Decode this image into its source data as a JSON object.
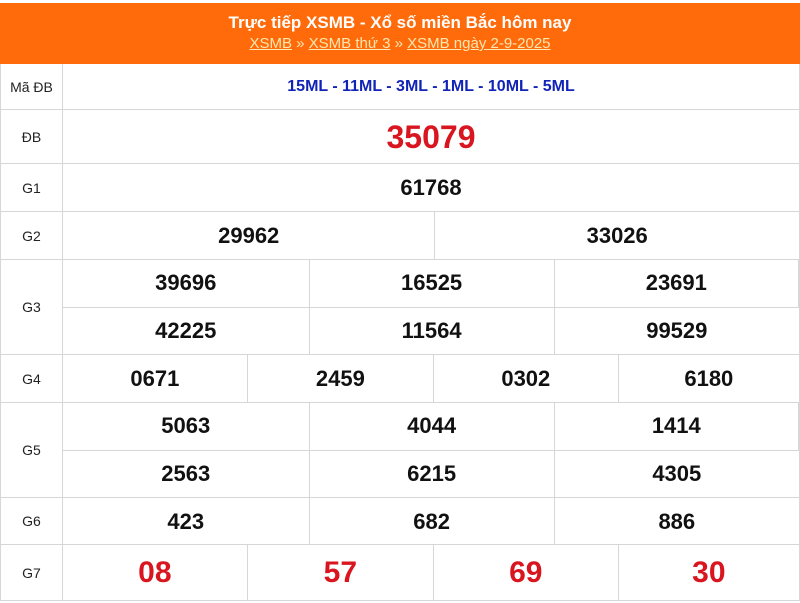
{
  "header": {
    "title": "Trực tiếp XSMB - Xổ số miền Bắc hôm nay",
    "breadcrumb": [
      "XSMB",
      "XSMB thứ 3",
      "XSMB ngày 2-9-2025"
    ],
    "sep": "»"
  },
  "colors": {
    "header_bg": "#ff6b0a",
    "special": "#d9151f",
    "code": "#1224b8"
  },
  "rows": {
    "ma_db": {
      "label": "Mã ĐB",
      "value": "15ML - 11ML - 3ML - 1ML - 10ML - 5ML"
    },
    "db": {
      "label": "ĐB",
      "values": [
        "35079"
      ]
    },
    "g1": {
      "label": "G1",
      "values": [
        "61768"
      ]
    },
    "g2": {
      "label": "G2",
      "values": [
        "29962",
        "33026"
      ]
    },
    "g3": {
      "label": "G3",
      "values": [
        "39696",
        "16525",
        "23691",
        "42225",
        "11564",
        "99529"
      ]
    },
    "g4": {
      "label": "G4",
      "values": [
        "0671",
        "2459",
        "0302",
        "6180"
      ]
    },
    "g5": {
      "label": "G5",
      "values": [
        "5063",
        "4044",
        "1414",
        "2563",
        "6215",
        "4305"
      ]
    },
    "g6": {
      "label": "G6",
      "values": [
        "423",
        "682",
        "886"
      ]
    },
    "g7": {
      "label": "G7",
      "values": [
        "08",
        "57",
        "69",
        "30"
      ]
    }
  }
}
